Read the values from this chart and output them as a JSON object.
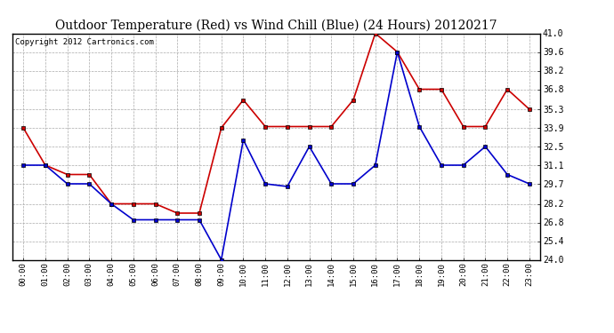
{
  "title": "Outdoor Temperature (Red) vs Wind Chill (Blue) (24 Hours) 20120217",
  "copyright": "Copyright 2012 Cartronics.com",
  "x_labels": [
    "00:00",
    "01:00",
    "02:00",
    "03:00",
    "04:00",
    "05:00",
    "06:00",
    "07:00",
    "08:00",
    "09:00",
    "10:00",
    "11:00",
    "12:00",
    "13:00",
    "14:00",
    "15:00",
    "16:00",
    "17:00",
    "18:00",
    "19:00",
    "20:00",
    "21:00",
    "22:00",
    "23:00"
  ],
  "red_temp": [
    33.9,
    31.1,
    30.4,
    30.4,
    28.2,
    28.2,
    28.2,
    27.5,
    27.5,
    33.9,
    36.0,
    34.0,
    34.0,
    34.0,
    34.0,
    36.0,
    41.0,
    39.6,
    36.8,
    36.8,
    34.0,
    34.0,
    36.8,
    35.3
  ],
  "blue_windchill": [
    31.1,
    31.1,
    29.7,
    29.7,
    28.2,
    27.0,
    27.0,
    27.0,
    27.0,
    24.0,
    33.0,
    29.7,
    29.5,
    32.5,
    29.7,
    29.7,
    31.1,
    39.6,
    34.0,
    31.1,
    31.1,
    32.5,
    30.4,
    29.7
  ],
  "ylim_min": 24.0,
  "ylim_max": 41.0,
  "yticks": [
    24.0,
    25.4,
    26.8,
    28.2,
    29.7,
    31.1,
    32.5,
    33.9,
    35.3,
    36.8,
    38.2,
    39.6,
    41.0
  ],
  "bg_color": "#ffffff",
  "grid_color": "#aaaaaa",
  "red_color": "#cc0000",
  "blue_color": "#0000cc",
  "title_fontsize": 10,
  "copyright_fontsize": 6.5
}
